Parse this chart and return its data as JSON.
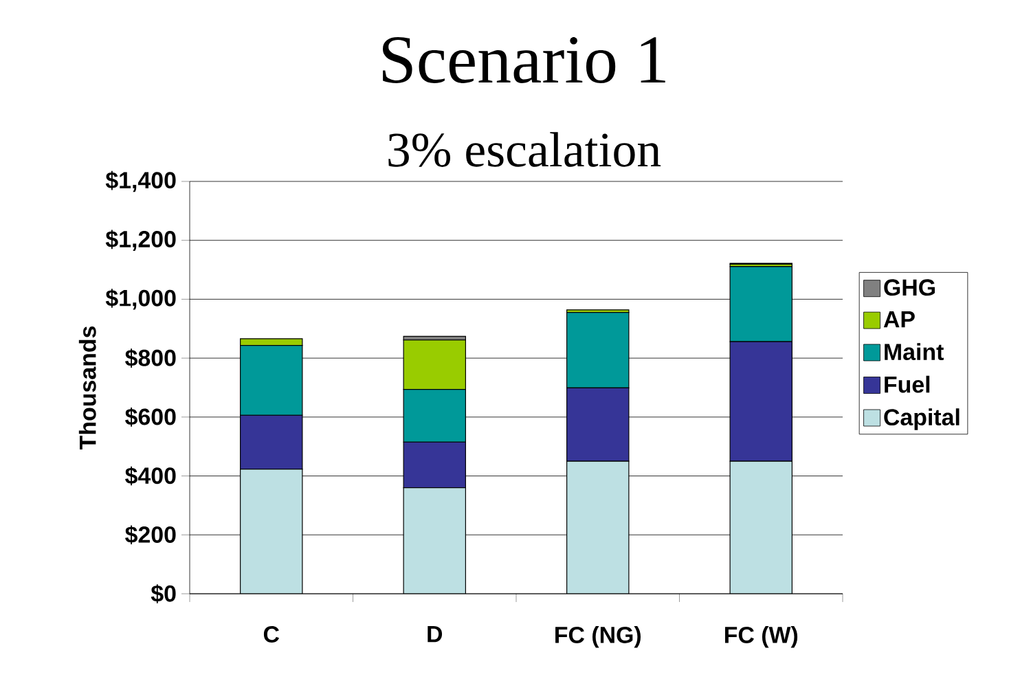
{
  "chart_data": {
    "type": "bar",
    "title": "Scenario 1",
    "subtitle": "3% escalation",
    "ylabel": "Thousands",
    "categories": [
      "C",
      "D",
      "FC (NG)",
      "FC (W)"
    ],
    "stacked": true,
    "grid": "y",
    "legend": "right",
    "ylim": [
      0,
      1400
    ],
    "yticks": [
      {
        "value": 0,
        "label": "$0"
      },
      {
        "value": 200,
        "label": "$200"
      },
      {
        "value": 400,
        "label": "$400"
      },
      {
        "value": 600,
        "label": "$600"
      },
      {
        "value": 800,
        "label": "$800"
      },
      {
        "value": 1000,
        "label": "$1,000"
      },
      {
        "value": 1200,
        "label": "$1,200"
      },
      {
        "value": 1400,
        "label": "$1,400"
      }
    ],
    "series": [
      {
        "name": "Capital",
        "color": "#bde0e3",
        "values": [
          423,
          360,
          450,
          450
        ]
      },
      {
        "name": "Fuel",
        "color": "#363597",
        "values": [
          183,
          155,
          249,
          406
        ]
      },
      {
        "name": "Maint",
        "color": "#009999",
        "values": [
          237,
          179,
          256,
          255
        ]
      },
      {
        "name": "AP",
        "color": "#99cc00",
        "values": [
          23,
          168,
          9,
          8
        ]
      },
      {
        "name": "GHG",
        "color": "#808080",
        "values": [
          null,
          12,
          null,
          3
        ]
      }
    ]
  }
}
